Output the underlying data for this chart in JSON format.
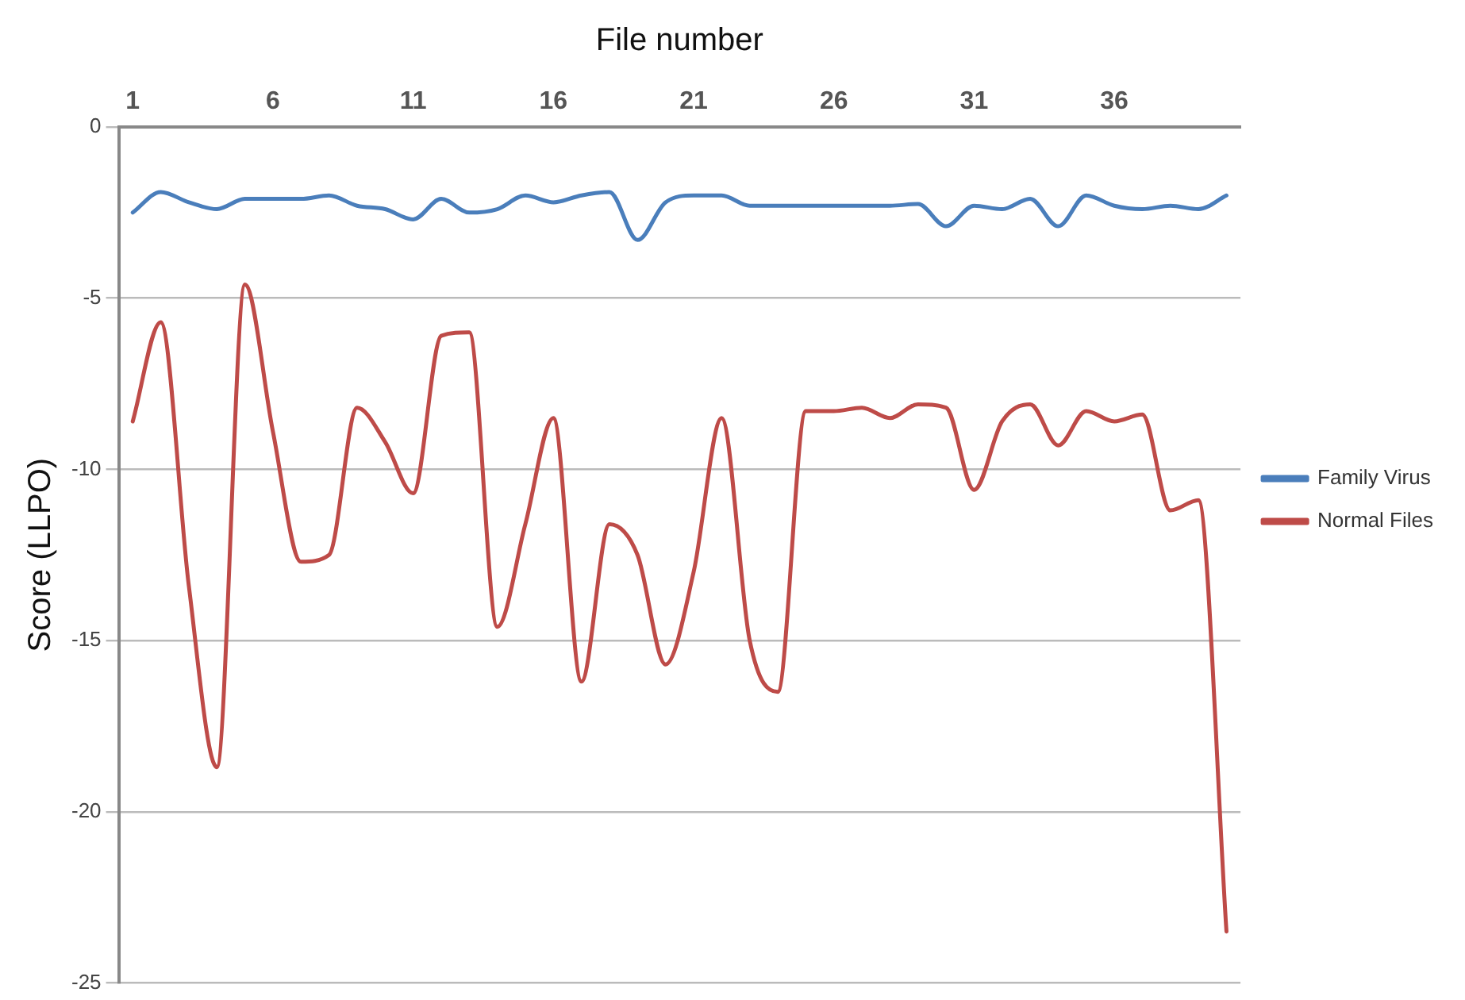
{
  "chart_data": {
    "type": "line",
    "xlabel": "File number",
    "ylabel": "Score (LLPO)",
    "categories": [
      "1",
      null,
      null,
      null,
      null,
      "6",
      null,
      null,
      null,
      null,
      "11",
      null,
      null,
      null,
      null,
      "16",
      null,
      null,
      null,
      null,
      "21",
      null,
      null,
      null,
      null,
      "26",
      null,
      null,
      null,
      null,
      "31",
      null,
      null,
      null,
      null,
      "36",
      null,
      null,
      null,
      null
    ],
    "series": [
      {
        "name": "Family Virus",
        "color": "#4a7ebb",
        "values": [
          -2.5,
          -1.9,
          -2.2,
          -2.4,
          -2.1,
          -2.1,
          -2.1,
          -2.0,
          -2.3,
          -2.4,
          -2.7,
          -2.1,
          -2.5,
          -2.4,
          -2.0,
          -2.2,
          -2.0,
          -1.9,
          -3.3,
          -2.2,
          -2.0,
          -2.0,
          -2.3,
          -2.3,
          -2.3,
          -2.3,
          -2.3,
          -2.3,
          -2.25,
          -2.9,
          -2.3,
          -2.4,
          -2.1,
          -2.9,
          -2.0,
          -2.3,
          -2.4,
          -2.3,
          -2.4,
          -2.0
        ]
      },
      {
        "name": "Normal Files",
        "color": "#be4b48",
        "values": [
          -8.6,
          -5.7,
          -13.4,
          -18.7,
          -4.6,
          -8.9,
          -12.7,
          -12.5,
          -8.2,
          -9.2,
          -10.7,
          -6.1,
          -6.0,
          -14.6,
          -11.6,
          -8.5,
          -16.2,
          -11.6,
          -12.5,
          -15.7,
          -13.0,
          -8.5,
          -15.0,
          -16.5,
          -8.3,
          -8.3,
          -8.2,
          -8.5,
          -8.1,
          -8.2,
          -10.6,
          -8.6,
          -8.1,
          -9.3,
          -8.3,
          -8.6,
          -8.4,
          -11.2,
          -10.9,
          -23.5
        ]
      }
    ],
    "ylim": [
      -25,
      0
    ],
    "yticks": [
      -25,
      -20,
      -15,
      -10,
      -5,
      0
    ],
    "grid": "y",
    "legend": "right",
    "marker": "none",
    "line_style": "solid"
  }
}
